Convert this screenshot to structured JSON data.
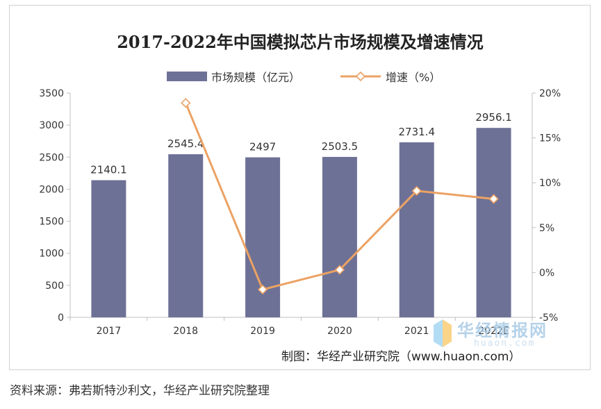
{
  "chart_data": {
    "type": "bar",
    "title": "2017-2022年中国模拟芯片市场规模及增速情况",
    "categories": [
      "2017",
      "2018",
      "2019",
      "2020",
      "2021",
      "2022E"
    ],
    "series": [
      {
        "name": "市场规模（亿元）",
        "type": "bar",
        "axis": "left",
        "values": [
          2140.1,
          2545.4,
          2497,
          2503.5,
          2731.4,
          2956.1
        ],
        "labels": [
          "2140.1",
          "2545.4",
          "2497",
          "2503.5",
          "2731.4",
          "2956.1"
        ],
        "color": "#6e7196"
      },
      {
        "name": "增速（%）",
        "type": "line",
        "axis": "right",
        "values": [
          null,
          18.9,
          -1.9,
          0.3,
          9.1,
          8.2
        ],
        "color": "#eba264",
        "marker": "diamond"
      }
    ],
    "y_left": {
      "min": 0,
      "max": 3500,
      "ticks": [
        "0",
        "500",
        "1000",
        "1500",
        "2000",
        "2500",
        "3000",
        "3500"
      ]
    },
    "y_right": {
      "min": -5,
      "max": 20,
      "ticks": [
        "-5%",
        "0%",
        "5%",
        "10%",
        "15%",
        "20%"
      ]
    },
    "legend_position": "top",
    "grid": false
  },
  "credit": "制图：华经产业研究院（www.huaon.com）",
  "source": "资料来源：弗若斯特沙利文，华经产业研究院整理",
  "watermark": {
    "text": "华经情报网",
    "sub": "huaon.com"
  },
  "colors": {
    "bar": "#6e7196",
    "line": "#eba264",
    "axis": "#bfbfbf",
    "text": "#333333"
  }
}
